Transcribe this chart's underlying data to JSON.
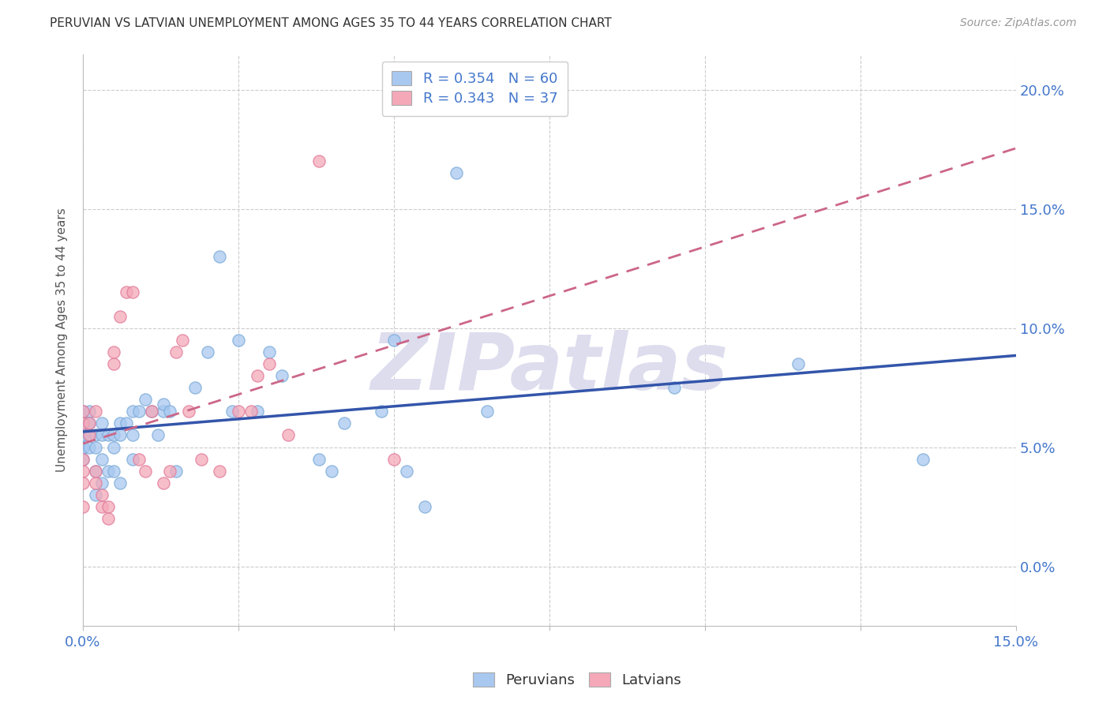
{
  "title": "PERUVIAN VS LATVIAN UNEMPLOYMENT AMONG AGES 35 TO 44 YEARS CORRELATION CHART",
  "source": "Source: ZipAtlas.com",
  "ylabel": "Unemployment Among Ages 35 to 44 years",
  "xlim": [
    0.0,
    0.15
  ],
  "ylim": [
    -0.025,
    0.215
  ],
  "xtick_positions": [
    0.0,
    0.025,
    0.05,
    0.075,
    0.1,
    0.125,
    0.15
  ],
  "xtick_labels": [
    "0.0%",
    "",
    "",
    "",
    "",
    "",
    "15.0%"
  ],
  "ytick_positions": [
    0.0,
    0.05,
    0.1,
    0.15,
    0.2
  ],
  "ytick_labels": [
    "0.0%",
    "5.0%",
    "10.0%",
    "15.0%",
    "20.0%"
  ],
  "peruvian_color": "#A8C8F0",
  "peruvian_edge_color": "#7AAAD8",
  "latvian_color": "#F4A8B8",
  "latvian_edge_color": "#E07898",
  "peruvian_line_color": "#3355AA",
  "latvian_line_color": "#CC6688",
  "R_peruvian": 0.354,
  "N_peruvian": 60,
  "R_latvian": 0.343,
  "N_latvian": 37,
  "peruvian_x": [
    0.0,
    0.0,
    0.0,
    0.0,
    0.0,
    0.0,
    0.0,
    0.0,
    0.001,
    0.001,
    0.001,
    0.001,
    0.002,
    0.002,
    0.002,
    0.002,
    0.003,
    0.003,
    0.003,
    0.003,
    0.004,
    0.004,
    0.005,
    0.005,
    0.005,
    0.006,
    0.006,
    0.006,
    0.007,
    0.008,
    0.008,
    0.008,
    0.009,
    0.01,
    0.011,
    0.012,
    0.013,
    0.013,
    0.014,
    0.015,
    0.018,
    0.02,
    0.022,
    0.024,
    0.025,
    0.028,
    0.03,
    0.032,
    0.038,
    0.04,
    0.042,
    0.048,
    0.05,
    0.052,
    0.055,
    0.06,
    0.065,
    0.095,
    0.115,
    0.135
  ],
  "peruvian_y": [
    0.045,
    0.05,
    0.055,
    0.06,
    0.065,
    0.06,
    0.055,
    0.05,
    0.05,
    0.055,
    0.06,
    0.065,
    0.03,
    0.04,
    0.05,
    0.055,
    0.035,
    0.045,
    0.055,
    0.06,
    0.04,
    0.055,
    0.04,
    0.05,
    0.055,
    0.035,
    0.055,
    0.06,
    0.06,
    0.045,
    0.055,
    0.065,
    0.065,
    0.07,
    0.065,
    0.055,
    0.065,
    0.068,
    0.065,
    0.04,
    0.075,
    0.09,
    0.13,
    0.065,
    0.095,
    0.065,
    0.09,
    0.08,
    0.045,
    0.04,
    0.06,
    0.065,
    0.095,
    0.04,
    0.025,
    0.165,
    0.065,
    0.075,
    0.085,
    0.045
  ],
  "latvian_x": [
    0.0,
    0.0,
    0.0,
    0.0,
    0.0,
    0.0,
    0.001,
    0.001,
    0.002,
    0.002,
    0.002,
    0.003,
    0.003,
    0.004,
    0.004,
    0.005,
    0.005,
    0.006,
    0.007,
    0.008,
    0.009,
    0.01,
    0.011,
    0.013,
    0.014,
    0.015,
    0.016,
    0.017,
    0.019,
    0.022,
    0.025,
    0.027,
    0.028,
    0.03,
    0.033,
    0.038,
    0.05
  ],
  "latvian_y": [
    0.04,
    0.045,
    0.025,
    0.035,
    0.06,
    0.065,
    0.055,
    0.06,
    0.035,
    0.04,
    0.065,
    0.025,
    0.03,
    0.02,
    0.025,
    0.085,
    0.09,
    0.105,
    0.115,
    0.115,
    0.045,
    0.04,
    0.065,
    0.035,
    0.04,
    0.09,
    0.095,
    0.065,
    0.045,
    0.04,
    0.065,
    0.065,
    0.08,
    0.085,
    0.055,
    0.17,
    0.045
  ],
  "background_color": "#FFFFFF",
  "grid_color": "#CCCCCC",
  "title_color": "#333333",
  "axis_label_color": "#555555",
  "tick_color": "#4477CC",
  "watermark_text": "ZIPatlas",
  "watermark_color": "#DDDDEE"
}
